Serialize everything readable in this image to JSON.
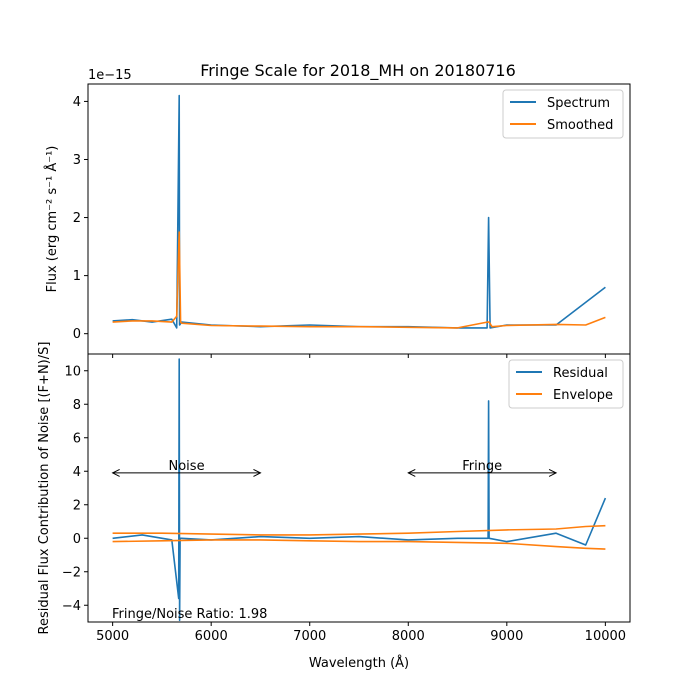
{
  "chart_data": [
    {
      "type": "line",
      "title": "Fringe Scale for 2018_MH on 20180716",
      "xlabel": "",
      "ylabel": "Flux (erg cm⁻² s⁻¹ Å⁻¹)",
      "offset_text": "1e−15",
      "xlim": [
        4750,
        10250
      ],
      "ylim": [
        -0.35,
        4.3
      ],
      "yticks": [
        "0",
        "1",
        "2",
        "3",
        "4"
      ],
      "legend": {
        "position": "top-right",
        "entries": [
          "Spectrum",
          "Smoothed"
        ]
      },
      "series": [
        {
          "name": "Spectrum",
          "color": "#1f77b4",
          "x": [
            5000,
            5200,
            5400,
            5600,
            5650,
            5675,
            5680,
            5700,
            6000,
            6500,
            7000,
            7500,
            8000,
            8500,
            8800,
            8815,
            8830,
            9000,
            9500,
            10000
          ],
          "y": [
            0.22,
            0.24,
            0.2,
            0.25,
            0.1,
            4.1,
            0.15,
            0.2,
            0.15,
            0.12,
            0.15,
            0.12,
            0.12,
            0.1,
            0.1,
            2.0,
            0.1,
            0.15,
            0.15,
            0.8
          ]
        },
        {
          "name": "Smoothed",
          "color": "#ff7f0e",
          "x": [
            5000,
            5200,
            5400,
            5600,
            5650,
            5675,
            5690,
            5700,
            6000,
            6500,
            7000,
            7500,
            8000,
            8500,
            8800,
            8820,
            8850,
            9000,
            9500,
            9800,
            10000
          ],
          "y": [
            0.2,
            0.22,
            0.22,
            0.2,
            0.3,
            1.75,
            0.2,
            0.18,
            0.14,
            0.13,
            0.12,
            0.12,
            0.11,
            0.1,
            0.2,
            0.2,
            0.12,
            0.14,
            0.16,
            0.15,
            0.28
          ]
        }
      ]
    },
    {
      "type": "line",
      "title": "",
      "xlabel": "Wavelength (Å)",
      "ylabel": "Residual Flux Contribution of Noise [(F+N)/S]",
      "xlim": [
        4750,
        10250
      ],
      "ylim": [
        -5.0,
        11.0
      ],
      "xticks": [
        "5000",
        "6000",
        "7000",
        "8000",
        "9000",
        "10000"
      ],
      "yticks": [
        "−4",
        "−2",
        "0",
        "2",
        "4",
        "6",
        "8",
        "10"
      ],
      "legend": {
        "position": "top-right",
        "entries": [
          "Residual",
          "Envelope"
        ]
      },
      "annotations": [
        {
          "text": "Noise",
          "x_from": 5000,
          "x_to": 6500,
          "y": 3.9
        },
        {
          "text": "Fringe",
          "x_from": 8000,
          "x_to": 9500,
          "y": 3.9
        }
      ],
      "footer_text": "Fringe/Noise Ratio: 1.98",
      "series": [
        {
          "name": "Residual",
          "color": "#1f77b4",
          "x": [
            5000,
            5300,
            5600,
            5670,
            5675,
            5680,
            5685,
            5700,
            6000,
            6500,
            7000,
            7500,
            8000,
            8500,
            8810,
            8815,
            8820,
            9000,
            9500,
            9800,
            10000
          ],
          "y": [
            0.0,
            0.2,
            -0.1,
            -3.6,
            10.7,
            -4.9,
            0.0,
            0.0,
            -0.1,
            0.1,
            0.0,
            0.1,
            -0.1,
            0.0,
            0.0,
            8.2,
            0.0,
            -0.2,
            0.3,
            -0.4,
            2.4
          ]
        },
        {
          "name": "Envelope",
          "color": "#ff7f0e",
          "x": [
            5000,
            5500,
            6000,
            6500,
            7000,
            7500,
            8000,
            8500,
            9000,
            9500,
            9800,
            10000
          ],
          "y": [
            0.3,
            0.3,
            0.25,
            0.2,
            0.2,
            0.25,
            0.3,
            0.4,
            0.5,
            0.55,
            0.7,
            0.75
          ]
        },
        {
          "name": "Envelope",
          "color": "#ff7f0e",
          "x": [
            5000,
            5500,
            6000,
            6500,
            7000,
            7500,
            8000,
            8500,
            9000,
            9500,
            9800,
            10000
          ],
          "y": [
            -0.2,
            -0.15,
            -0.1,
            -0.1,
            -0.15,
            -0.2,
            -0.2,
            -0.25,
            -0.3,
            -0.5,
            -0.6,
            -0.65
          ]
        }
      ]
    }
  ]
}
